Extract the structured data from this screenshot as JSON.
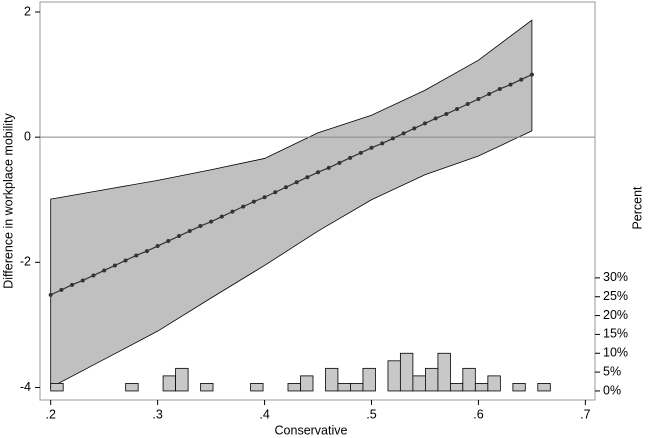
{
  "chart_data": {
    "type": "line",
    "xlabel": "Conservative",
    "ylabel": "Difference in workplace mobility",
    "y2label": "Percent",
    "xlim": [
      0.19,
      0.709
    ],
    "ylim": [
      -4.2,
      2.16
    ],
    "y2lim": [
      -2.4,
      103.2
    ],
    "xticks": [
      {
        "value": 0.2,
        "label": ".2"
      },
      {
        "value": 0.3,
        "label": ".3"
      },
      {
        "value": 0.4,
        "label": ".4"
      },
      {
        "value": 0.5,
        "label": ".5"
      },
      {
        "value": 0.6,
        "label": ".6"
      },
      {
        "value": 0.7,
        "label": ".7"
      }
    ],
    "yticks": [
      -4,
      -2,
      0,
      2
    ],
    "y2ticks": [
      {
        "value": 0,
        "label": "0%"
      },
      {
        "value": 5,
        "label": "5%"
      },
      {
        "value": 10,
        "label": "10%"
      },
      {
        "value": 15,
        "label": "15%"
      },
      {
        "value": 20,
        "label": "20%"
      },
      {
        "value": 25,
        "label": "25%"
      },
      {
        "value": 30,
        "label": "30%"
      }
    ],
    "yline": 0,
    "color": "#333333",
    "x": [
      0.2,
      0.21,
      0.22,
      0.23,
      0.24,
      0.25,
      0.26,
      0.27,
      0.28,
      0.29,
      0.3,
      0.31,
      0.32,
      0.33,
      0.34,
      0.35,
      0.36,
      0.37,
      0.38,
      0.39,
      0.4,
      0.41,
      0.42,
      0.43,
      0.44,
      0.45,
      0.46,
      0.47,
      0.48,
      0.49,
      0.5,
      0.51,
      0.52,
      0.53,
      0.54,
      0.55,
      0.56,
      0.57,
      0.58,
      0.59,
      0.6,
      0.61,
      0.62,
      0.63,
      0.64,
      0.65
    ],
    "values": [
      -2.52,
      -2.44,
      -2.36,
      -2.29,
      -2.21,
      -2.13,
      -2.05,
      -1.97,
      -1.89,
      -1.82,
      -1.74,
      -1.66,
      -1.58,
      -1.5,
      -1.42,
      -1.35,
      -1.27,
      -1.19,
      -1.11,
      -1.03,
      -0.96,
      -0.88,
      -0.8,
      -0.72,
      -0.64,
      -0.56,
      -0.49,
      -0.41,
      -0.33,
      -0.25,
      -0.17,
      -0.1,
      -0.02,
      0.06,
      0.14,
      0.22,
      0.3,
      0.37,
      0.45,
      0.53,
      0.61,
      0.69,
      0.77,
      0.84,
      0.92,
      1.0
    ],
    "ci_color": "#c0c0c0",
    "ci_x": [
      0.2,
      0.25,
      0.3,
      0.35,
      0.4,
      0.45,
      0.5,
      0.55,
      0.6,
      0.65
    ],
    "ci_lower": [
      -4.0,
      -3.55,
      -3.1,
      -2.57,
      -2.05,
      -1.5,
      -1.0,
      -0.6,
      -0.3,
      0.1
    ],
    "ci_upper": [
      -0.99,
      -0.84,
      -0.69,
      -0.52,
      -0.34,
      0.07,
      0.35,
      0.75,
      1.23,
      1.87
    ],
    "histogram": {
      "type": "histogram",
      "axis": "y2",
      "color": "#c8c8c8",
      "bins": [
        0.2,
        0.2117,
        0.2234,
        0.235,
        0.2467,
        0.2584,
        0.2701,
        0.2818,
        0.2934,
        0.3051,
        0.3168,
        0.3285,
        0.3402,
        0.3518,
        0.3635,
        0.3752,
        0.3869,
        0.3986,
        0.4102,
        0.4219,
        0.4336,
        0.4453,
        0.457,
        0.4686,
        0.4803,
        0.492,
        0.5037,
        0.5154,
        0.527,
        0.5387,
        0.5504,
        0.5621,
        0.5738,
        0.5854,
        0.5971,
        0.6088,
        0.6205,
        0.6322,
        0.6438,
        0.6555,
        0.6672
      ],
      "values": [
        2,
        0,
        0,
        0,
        0,
        0,
        2,
        0,
        0,
        4,
        6,
        0,
        2,
        0,
        0,
        0,
        2,
        0,
        0,
        2,
        4,
        0,
        6,
        2,
        2,
        6,
        0,
        8,
        10,
        4,
        6,
        10,
        2,
        6,
        2,
        4,
        0,
        2,
        0,
        2
      ]
    }
  }
}
